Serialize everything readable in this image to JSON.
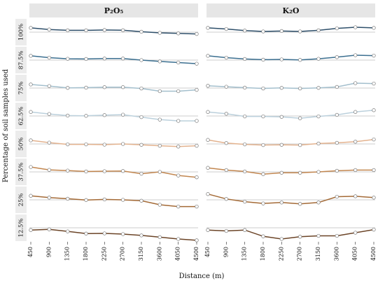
{
  "chart_data": {
    "type": "line",
    "title": "",
    "xlabel": "Distance (m)",
    "ylabel": "Percentage of soil samples used",
    "x": [
      "450",
      "900",
      "1350",
      "1800",
      "2250",
      "2700",
      "3150",
      "3600",
      "4050",
      "4500"
    ],
    "panels": [
      {
        "name": "P₂O₅",
        "rows": [
          {
            "name": "100%",
            "color": "#2e4f6a",
            "values": [
              0.95,
              0.6,
              0.4,
              0.4,
              0.48,
              0.42,
              0.1,
              -0.15,
              -0.28,
              -0.4
            ]
          },
          {
            "name": "87.5%",
            "color": "#3b6f90",
            "values": [
              0.95,
              0.55,
              0.3,
              0.25,
              0.35,
              0.35,
              0.0,
              -0.3,
              -0.55,
              -0.8
            ]
          },
          {
            "name": "75%",
            "color": "#a3bfcd",
            "values": [
              0.8,
              0.45,
              0.05,
              0.1,
              0.2,
              0.2,
              -0.1,
              -0.7,
              -0.7,
              -0.4
            ]
          },
          {
            "name": "62.5%",
            "color": "#bbd0dc",
            "values": [
              0.9,
              0.45,
              0.1,
              0.05,
              0.2,
              0.3,
              -0.25,
              -0.8,
              -1.1,
              -1.1
            ]
          },
          {
            "name": "50%",
            "color": "#e3b28e",
            "values": [
              0.8,
              0.3,
              -0.1,
              -0.1,
              -0.15,
              0.0,
              -0.2,
              -0.4,
              -0.6,
              -0.4
            ]
          },
          {
            "name": "37.5%",
            "color": "#c2864f",
            "values": [
              1.1,
              0.45,
              0.3,
              0.1,
              0.15,
              0.2,
              -0.4,
              0.0,
              -0.8,
              -1.2
            ]
          },
          {
            "name": "25%",
            "color": "#a46a36",
            "values": [
              0.9,
              0.5,
              0.25,
              -0.05,
              0.1,
              0.0,
              -0.2,
              -1.1,
              -1.5,
              -1.5
            ]
          },
          {
            "name": "12.5%",
            "color": "#6b4427",
            "values": [
              -0.5,
              -0.35,
              -0.8,
              -1.3,
              -1.25,
              -1.4,
              -1.7,
              -2.1,
              -2.5,
              -2.8
            ]
          }
        ]
      },
      {
        "name": "K₂O",
        "rows": [
          {
            "name": "100%",
            "color": "#2e4f6a",
            "values": [
              0.95,
              0.7,
              0.35,
              0.15,
              0.25,
              0.15,
              0.4,
              0.85,
              1.1,
              0.95
            ]
          },
          {
            "name": "87.5%",
            "color": "#3b6f90",
            "values": [
              0.95,
              0.55,
              0.25,
              0.1,
              0.15,
              0.05,
              0.3,
              0.65,
              1.1,
              1.0
            ]
          },
          {
            "name": "75%",
            "color": "#a3bfcd",
            "values": [
              0.5,
              0.3,
              0.1,
              -0.1,
              0.05,
              -0.1,
              0.05,
              0.25,
              1.1,
              1.0
            ]
          },
          {
            "name": "62.5%",
            "color": "#bbd0dc",
            "values": [
              0.9,
              0.5,
              -0.1,
              -0.1,
              -0.2,
              -0.5,
              -0.1,
              0.25,
              0.9,
              1.3
            ]
          },
          {
            "name": "50%",
            "color": "#e3b28e",
            "values": [
              0.9,
              0.2,
              -0.1,
              -0.25,
              -0.2,
              -0.25,
              0.1,
              0.25,
              0.5,
              1.0
            ]
          },
          {
            "name": "37.5%",
            "color": "#c2864f",
            "values": [
              0.9,
              0.4,
              0.1,
              -0.5,
              -0.2,
              -0.2,
              0.0,
              0.25,
              0.4,
              0.4
            ]
          },
          {
            "name": "25%",
            "color": "#a46a36",
            "values": [
              1.3,
              0.2,
              -0.4,
              -0.8,
              -0.6,
              -0.9,
              -0.6,
              0.7,
              0.8,
              0.5
            ]
          },
          {
            "name": "12.5%",
            "color": "#6b4427",
            "values": [
              -0.5,
              -0.7,
              -0.5,
              -1.9,
              -2.5,
              -2.0,
              -1.8,
              -1.8,
              -1.1,
              -0.4
            ]
          }
        ]
      }
    ],
    "grid": true,
    "background": "#ffffff",
    "strip_color": "#e6e6e6",
    "label_color": "#ececec",
    "gridline_color": "#bdbdbd"
  }
}
